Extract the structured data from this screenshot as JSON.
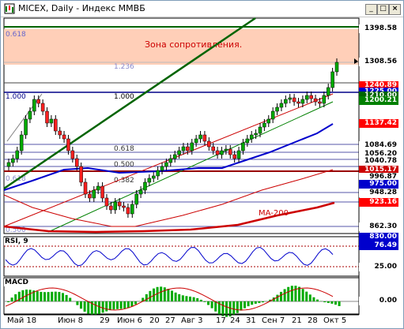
{
  "window": {
    "title": "MICEX, Daily - Индекс ММВБ",
    "close_label": "×",
    "min_label": "_",
    "max_label": "□"
  },
  "annotations": {
    "resistance_zone": "Зона сопротивления.",
    "ma200": "MA-200",
    "fib_top_left": "0.618",
    "fib_1236": "1.236",
    "fib_1000_left": "1.000",
    "fib_1000_mid": "1.000",
    "fib_0618_mid": "0.618",
    "fib_0500": "0.500",
    "fib_0382": "0.382",
    "fib_0618_left": "0.618",
    "fib_0500_low": "0.500"
  },
  "price_labels": [
    {
      "text": "1398.58",
      "bg": "#ffffff",
      "fg": "#000000"
    },
    {
      "text": "1308.56",
      "bg": "#ffffff",
      "fg": "#000000"
    },
    {
      "text": "1240.89",
      "bg": "#ff0000",
      "fg": "#ffffff"
    },
    {
      "text": "1225.00",
      "bg": "#0000cc",
      "fg": "#ffffff"
    },
    {
      "text": "1210.00",
      "bg": "#006400",
      "fg": "#ffffff"
    },
    {
      "text": "1200.21",
      "bg": "#008000",
      "fg": "#ffffff"
    },
    {
      "text": "1137.42",
      "bg": "#ff0000",
      "fg": "#ffffff"
    },
    {
      "text": "1084.69",
      "bg": "#ffffff",
      "fg": "#000000"
    },
    {
      "text": "1056.20",
      "bg": "#ffffff",
      "fg": "#000000"
    },
    {
      "text": "1040.78",
      "bg": "#ffffff",
      "fg": "#000000"
    },
    {
      "text": "1015.17",
      "bg": "#cc0000",
      "fg": "#ffffff"
    },
    {
      "text": "996.87",
      "bg": "#ffffff",
      "fg": "#000000"
    },
    {
      "text": "975.00",
      "bg": "#0000cc",
      "fg": "#ffffff"
    },
    {
      "text": "948.28",
      "bg": "#ffffff",
      "fg": "#000000"
    },
    {
      "text": "923.16",
      "bg": "#ff0000",
      "fg": "#ffffff"
    },
    {
      "text": "862.30",
      "bg": "#ffffff",
      "fg": "#000000"
    },
    {
      "text": "830.00",
      "bg": "#0000cc",
      "fg": "#ffffff"
    }
  ],
  "rsi": {
    "title": "RSI, 9",
    "value": "76.49",
    "level": "25.00"
  },
  "macd": {
    "title": "MACD",
    "zero": "0.00"
  },
  "x_axis": [
    "Май 18",
    "Июн 8",
    "29",
    "Июн 6",
    "20",
    "27",
    "Авг 3",
    "17",
    "24",
    "31",
    "Сен 7",
    "21",
    "28",
    "Окт 5"
  ]
}
